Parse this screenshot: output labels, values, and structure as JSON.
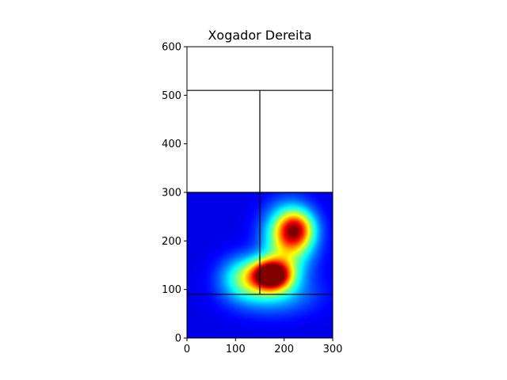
{
  "chart_data": {
    "type": "heatmap",
    "title": "Xogador Dereita",
    "xlabel": "",
    "ylabel": "",
    "xlim": [
      0,
      300
    ],
    "ylim": [
      0,
      600
    ],
    "xticks": [
      0,
      100,
      200,
      300
    ],
    "yticks": [
      0,
      100,
      200,
      300,
      400,
      500,
      600
    ],
    "xtick_labels": [
      "0",
      "100",
      "200",
      "300"
    ],
    "ytick_labels": [
      "0",
      "100",
      "200",
      "300",
      "400",
      "500",
      "600"
    ],
    "colormap": "jet",
    "heatmap_extent": {
      "x": [
        0,
        300
      ],
      "y": [
        0,
        300
      ]
    },
    "hotspots": [
      {
        "x": 175,
        "y": 130,
        "intensity": 1.0,
        "sigma_x": 28,
        "sigma_y": 22
      },
      {
        "x": 120,
        "y": 125,
        "intensity": 0.35,
        "sigma_x": 35,
        "sigma_y": 30
      },
      {
        "x": 210,
        "y": 205,
        "intensity": 0.55,
        "sigma_x": 35,
        "sigma_y": 45
      },
      {
        "x": 225,
        "y": 225,
        "intensity": 0.45,
        "sigma_x": 25,
        "sigma_y": 25
      },
      {
        "x": 180,
        "y": 90,
        "intensity": 0.2,
        "sigma_x": 60,
        "sigma_y": 30
      }
    ],
    "pitch_lines": [
      {
        "x1": 0,
        "y1": 300,
        "x2": 300,
        "y2": 300
      },
      {
        "x1": 0,
        "y1": 510,
        "x2": 300,
        "y2": 510
      },
      {
        "x1": 150,
        "y1": 90,
        "x2": 150,
        "y2": 510
      },
      {
        "x1": 0,
        "y1": 90,
        "x2": 300,
        "y2": 90
      }
    ]
  }
}
